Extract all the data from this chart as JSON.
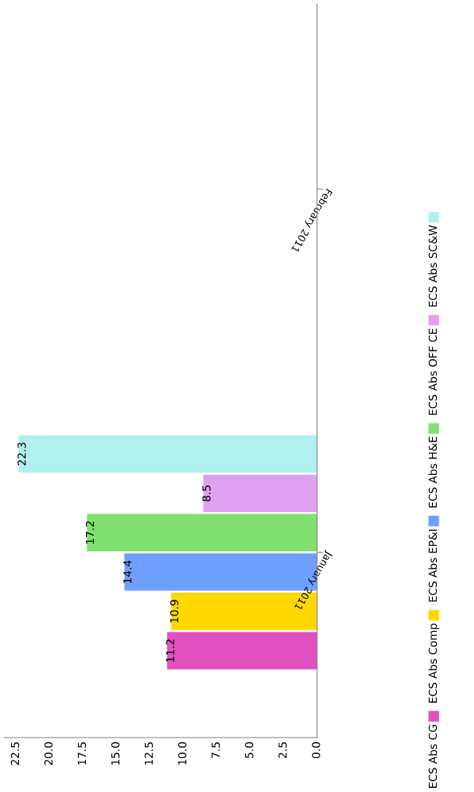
{
  "chart_data": {
    "type": "bar",
    "orientation": "horizontal",
    "categories": [
      "February 2011",
      "January 2011"
    ],
    "series": [
      {
        "name": "ECS Abs CG",
        "color": "#e050c0",
        "values": [
          null,
          11.2
        ]
      },
      {
        "name": "ECS Abs Comp",
        "color": "#ffd800",
        "values": [
          null,
          10.9
        ]
      },
      {
        "name": "ECS Abs EP&I",
        "color": "#70a0ff",
        "values": [
          null,
          14.4
        ]
      },
      {
        "name": "ECS Abs H&E",
        "color": "#80e070",
        "values": [
          null,
          17.2
        ]
      },
      {
        "name": "ECS Abs OFF CE",
        "color": "#e0a0f0",
        "values": [
          null,
          8.5
        ]
      },
      {
        "name": "ECS Abs SC&W",
        "color": "#b0f0ee",
        "values": [
          null,
          22.3
        ]
      }
    ],
    "xlim": [
      23.4,
      0
    ],
    "xticks": [
      {
        "value": 22.5,
        "label": "22.5"
      },
      {
        "value": 20,
        "label": "20.0"
      },
      {
        "value": 17.5,
        "label": "17.5"
      },
      {
        "value": 15,
        "label": "15.0"
      },
      {
        "value": 12.5,
        "label": "12.5"
      },
      {
        "value": 10,
        "label": "10.0"
      },
      {
        "value": 7.5,
        "label": "7.5"
      },
      {
        "value": 5,
        "label": "5.0"
      },
      {
        "value": 2.5,
        "label": "2.5"
      },
      {
        "value": 0,
        "label": "0.0"
      }
    ],
    "data_labels": true,
    "legend": "right",
    "grid": false
  }
}
